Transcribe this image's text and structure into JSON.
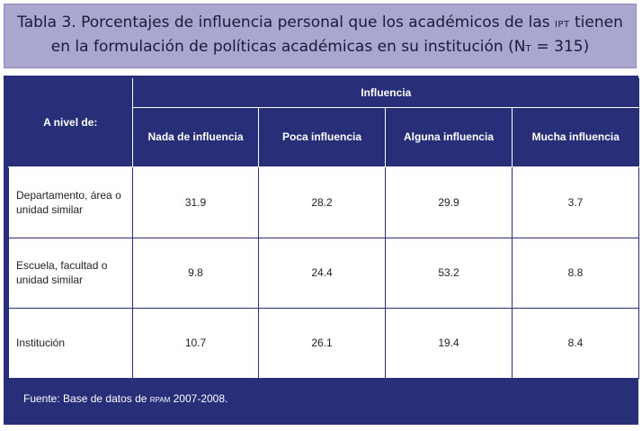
{
  "title": {
    "line1_part1": "Tabla 3. Porcentajes de influencia personal que los académicos de las",
    "line1_sc": "IPT",
    "line1_part2": "tienen",
    "line2_part1": "en la formulación  de políticas académicas en su institución (N",
    "line2_sub": "T",
    "line2_part2": " = 315)"
  },
  "table": {
    "row_header": "A nivel de:",
    "group_header": "Influencia",
    "columns": [
      "Nada de influencia",
      "Poca influencia",
      "Alguna influencia",
      "Mucha influencia"
    ],
    "rows": [
      {
        "label_line1": "Departamento, área o",
        "label_line2": "unidad similar",
        "values": [
          "31.9",
          "28.2",
          "29.9",
          "3.7"
        ]
      },
      {
        "label_line1": "Escuela, facultad o",
        "label_line2": "unidad similar",
        "values": [
          "9.8",
          "24.4",
          "53.2",
          "8.8"
        ]
      },
      {
        "label_line1": "Institución",
        "label_line2": "",
        "values": [
          "10.7",
          "26.1",
          "19.4",
          "8.4"
        ]
      }
    ]
  },
  "source": {
    "prefix": "Fuente: Base de datos de ",
    "sc": "RPAM",
    "suffix": " 2007-2008."
  },
  "colors": {
    "title_bg": "#a9a6d0",
    "header_bg": "#282e78"
  }
}
